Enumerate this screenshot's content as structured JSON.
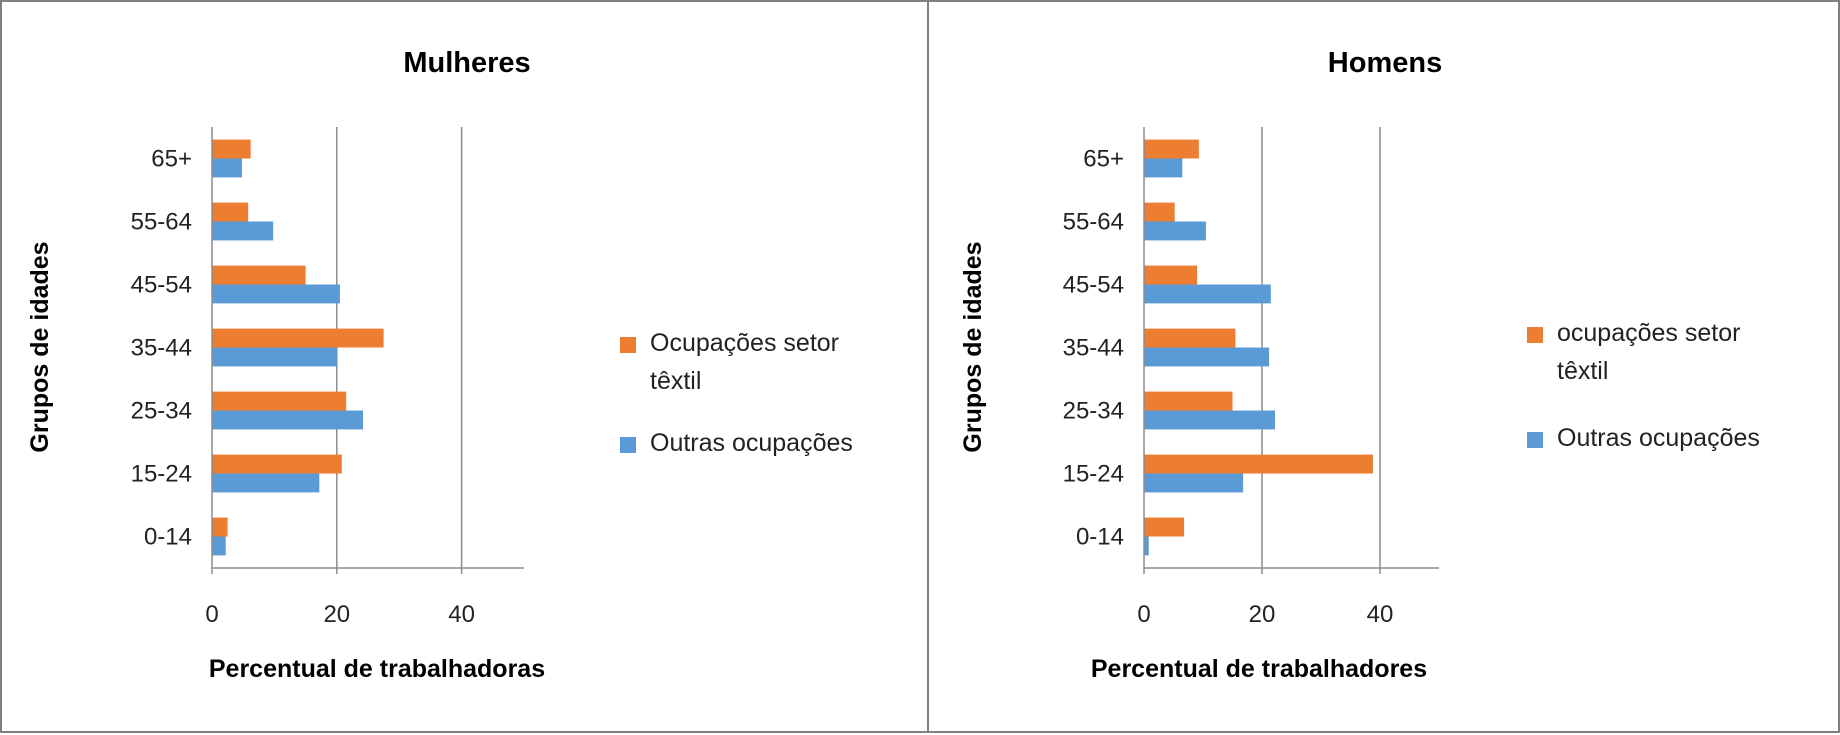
{
  "chart_data": [
    {
      "type": "bar",
      "orientation": "horizontal",
      "title": "Mulheres",
      "xlabel": "Percentual de trabalhadoras",
      "ylabel": "Grupos de idades",
      "categories": [
        "0-14",
        "15-24",
        "25-34",
        "35-44",
        "45-54",
        "55-64",
        "65+"
      ],
      "xlim": [
        0,
        50
      ],
      "xticks": [
        0,
        20,
        40
      ],
      "grid": true,
      "legend_position": "right",
      "series": [
        {
          "name": "Ocupações setor têxtil",
          "color": "#ED7D31",
          "values": [
            2.5,
            20.8,
            21.5,
            27.5,
            15.0,
            5.8,
            6.2
          ]
        },
        {
          "name": "Outras ocupações",
          "color": "#5B9BD5",
          "values": [
            2.2,
            17.2,
            24.2,
            20.0,
            20.5,
            9.8,
            4.8
          ]
        }
      ],
      "legend_lines": [
        [
          "Ocupações setor",
          "têxtil"
        ],
        [
          "Outras ocupações"
        ]
      ]
    },
    {
      "type": "bar",
      "orientation": "horizontal",
      "title": "Homens",
      "xlabel": "Percentual de trabalhadores",
      "ylabel": "Grupos de idades",
      "categories": [
        "0-14",
        "15-24",
        "25-34",
        "35-44",
        "45-54",
        "55-64",
        "65+"
      ],
      "xlim": [
        0,
        50
      ],
      "xticks": [
        0,
        20,
        40
      ],
      "grid": true,
      "legend_position": "right",
      "series": [
        {
          "name": "ocupações setor têxtil",
          "color": "#ED7D31",
          "values": [
            6.8,
            38.8,
            15.0,
            15.5,
            9.0,
            5.2,
            9.3
          ]
        },
        {
          "name": "Outras ocupações",
          "color": "#5B9BD5",
          "values": [
            0.8,
            16.8,
            22.2,
            21.2,
            21.5,
            10.5,
            6.5
          ]
        }
      ],
      "legend_lines": [
        [
          "ocupações setor",
          "têxtil"
        ],
        [
          "Outras ocupações"
        ]
      ]
    }
  ]
}
